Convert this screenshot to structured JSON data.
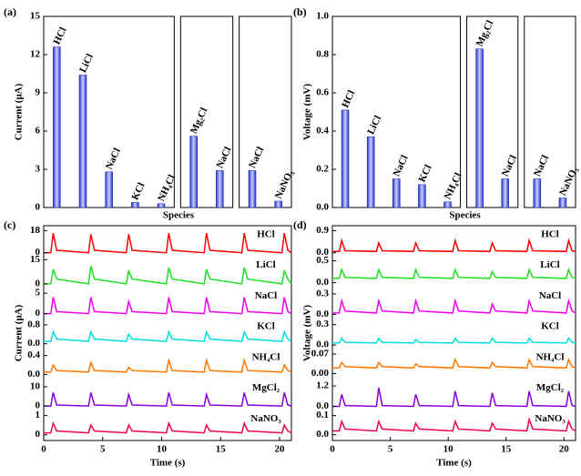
{
  "chart_data": [
    {
      "type": "bar",
      "panel_label": "(a)",
      "y_label": "Current (μA)",
      "x_label": "Species",
      "ylim": [
        0,
        15
      ],
      "yticks": [
        0,
        3,
        6,
        9,
        12,
        15
      ],
      "groups": [
        {
          "categories": [
            "HCl",
            "LiCl",
            "NaCl",
            "KCl",
            "NH₄Cl"
          ],
          "values": [
            12.6,
            10.4,
            2.8,
            0.4,
            0.3
          ],
          "label_colors": [
            "#ff0000",
            "#22dd22",
            "#cc00cc",
            "#00cccc",
            "#ff8800"
          ]
        },
        {
          "categories": [
            "Mg₂Cl",
            "NaCl"
          ],
          "values": [
            5.6,
            2.9
          ],
          "label_colors": [
            "#8800cc",
            "#cc00cc"
          ]
        },
        {
          "categories": [
            "NaCl",
            "NaNO₃"
          ],
          "values": [
            2.9,
            0.5
          ],
          "label_colors": [
            "#cc00cc",
            "#ff0033"
          ]
        }
      ]
    },
    {
      "type": "bar",
      "panel_label": "(b)",
      "y_label": "Voltage (mV)",
      "x_label": "Species",
      "ylim": [
        0,
        1.0
      ],
      "yticks": [
        {
          "value": 0,
          "label": "0.0"
        },
        0.2,
        0.4,
        0.6,
        0.8,
        {
          "value": 1,
          "label": "1.0"
        }
      ],
      "groups": [
        {
          "categories": [
            "HCl",
            "LiCl",
            "NaCl",
            "KCl",
            "NH₄Cl"
          ],
          "values": [
            0.51,
            0.37,
            0.15,
            0.12,
            0.03
          ],
          "label_colors": [
            "#ff0000",
            "#22dd22",
            "#cc00cc",
            "#00cccc",
            "#ff8800"
          ]
        },
        {
          "categories": [
            "Mg₂Cl",
            "NaCl"
          ],
          "values": [
            0.83,
            0.15
          ],
          "label_colors": [
            "#8800cc",
            "#cc00cc"
          ]
        },
        {
          "categories": [
            "NaCl",
            "NaNO₃"
          ],
          "values": [
            0.15,
            0.05
          ],
          "label_colors": [
            "#cc00cc",
            "#ff0033"
          ]
        }
      ]
    },
    {
      "type": "line",
      "panel_label": "(c)",
      "y_label": "Current (μA)",
      "x_label": "Time (s)",
      "xlim": [
        0,
        21
      ],
      "xticks": [
        0,
        5,
        10,
        15,
        20
      ],
      "x": [
        0,
        0.6,
        0.8,
        1.1,
        3.8,
        4.0,
        4.3,
        7.0,
        7.2,
        7.5,
        10.4,
        10.6,
        10.9,
        13.6,
        13.8,
        14.1,
        16.8,
        17.0,
        17.3,
        20.2,
        20.4,
        20.7,
        21
      ],
      "series": [
        {
          "name": "HCl",
          "color": "#ff0000",
          "ylim": [
            -3,
            22
          ],
          "yticks": [
            0,
            18
          ],
          "values": [
            0,
            0,
            16,
            2,
            0,
            15,
            2,
            0,
            15,
            2,
            0,
            16,
            2,
            0,
            16,
            2,
            0,
            16,
            2,
            0,
            16,
            2,
            0
          ]
        },
        {
          "name": "LiCl",
          "color": "#22dd22",
          "ylim": [
            -2,
            17
          ],
          "yticks": [
            0,
            15
          ],
          "values": [
            0,
            0,
            9,
            3,
            0,
            11,
            3,
            0,
            8,
            3,
            0,
            10,
            3,
            0,
            9,
            3,
            0,
            10,
            3,
            0,
            8,
            3,
            0
          ]
        },
        {
          "name": "NaCl",
          "color": "#ee00ee",
          "ylim": [
            -1,
            6.5
          ],
          "yticks": [
            0,
            5
          ],
          "values": [
            0,
            0,
            4,
            0.5,
            0,
            4,
            0.5,
            0,
            3,
            0.5,
            0,
            4,
            0.5,
            0,
            4,
            0.5,
            0,
            4,
            0.5,
            0,
            4,
            0.5,
            0
          ]
        },
        {
          "name": "KCl",
          "color": "#00dddd",
          "ylim": [
            -0.2,
            1.1
          ],
          "yticks": [
            {
              "value": 0,
              "label": "0.0"
            },
            0.8
          ],
          "values": [
            0.1,
            0.1,
            0.5,
            0.2,
            0.1,
            0.5,
            0.2,
            0.1,
            0.4,
            0.2,
            0.1,
            0.5,
            0.2,
            0.1,
            0.5,
            0.2,
            0.1,
            0.5,
            0.2,
            0.1,
            0.5,
            0.2,
            0.1
          ]
        },
        {
          "name": "NH₄Cl",
          "color": "#ff7700",
          "ylim": [
            -0.1,
            0.55
          ],
          "yticks": [
            {
              "value": 0,
              "label": "0.0"
            },
            0.4
          ],
          "values": [
            0.05,
            0.05,
            0.2,
            0.08,
            0.05,
            0.25,
            0.08,
            0.05,
            0.15,
            0.08,
            0.05,
            0.3,
            0.08,
            0.05,
            0.3,
            0.08,
            0.05,
            0.3,
            0.08,
            0.05,
            0.2,
            0.08,
            0.05
          ]
        },
        {
          "name": "MgCl₂",
          "color": "#8800dd",
          "ylim": [
            -2,
            14
          ],
          "yticks": [
            0,
            10
          ],
          "values": [
            0,
            0,
            7,
            0.5,
            0,
            7,
            0.5,
            0,
            6,
            0.5,
            0,
            7,
            0.5,
            0,
            6,
            0.5,
            0,
            7,
            0.5,
            0,
            7,
            0.5,
            0
          ]
        },
        {
          "name": "NaNO₃",
          "color": "#ee0055",
          "ylim": [
            -0.3,
            1.3
          ],
          "yticks": [
            0,
            1
          ],
          "values": [
            0.1,
            0.1,
            0.6,
            0.2,
            0.1,
            0.5,
            0.2,
            0.1,
            0.5,
            0.2,
            0.1,
            0.6,
            0.2,
            0.1,
            0.5,
            0.2,
            0.1,
            0.6,
            0.2,
            0.1,
            0.5,
            0.2,
            0.1
          ]
        }
      ]
    },
    {
      "type": "line",
      "panel_label": "(d)",
      "y_label": "Voltage (mV)",
      "x_label": "Time (s)",
      "xlim": [
        0,
        21
      ],
      "xticks": [
        0,
        5,
        10,
        15,
        20
      ],
      "x": [
        0,
        0.6,
        0.8,
        1.1,
        3.8,
        4.0,
        4.3,
        7.0,
        7.2,
        7.5,
        10.4,
        10.6,
        10.9,
        13.6,
        13.8,
        14.1,
        16.8,
        17.0,
        17.3,
        20.2,
        20.4,
        20.7,
        21
      ],
      "series": [
        {
          "name": "HCl",
          "color": "#ff0000",
          "ylim": [
            -0.15,
            1.1
          ],
          "yticks": [
            {
              "value": 0,
              "label": "0.0"
            },
            0.9
          ],
          "values": [
            0.05,
            0.05,
            0.5,
            0.08,
            0.05,
            0.4,
            0.08,
            0.05,
            0.4,
            0.08,
            0.05,
            0.5,
            0.08,
            0.05,
            0.4,
            0.08,
            0.05,
            0.5,
            0.08,
            0.05,
            0.5,
            0.08,
            0.05
          ]
        },
        {
          "name": "LiCl",
          "color": "#22dd22",
          "ylim": [
            -0.1,
            0.6
          ],
          "yticks": [
            {
              "value": 0,
              "label": "0.0"
            },
            0.5
          ],
          "values": [
            0.1,
            0.1,
            0.3,
            0.12,
            0.1,
            0.3,
            0.12,
            0.1,
            0.3,
            0.12,
            0.1,
            0.3,
            0.12,
            0.1,
            0.25,
            0.12,
            0.1,
            0.3,
            0.12,
            0.1,
            0.3,
            0.12,
            0.1
          ]
        },
        {
          "name": "NaCl",
          "color": "#ee00ee",
          "ylim": [
            -0.05,
            0.4
          ],
          "yticks": [
            {
              "value": 0,
              "label": "0.0"
            },
            0.3
          ],
          "values": [
            0.02,
            0.02,
            0.2,
            0.05,
            0.02,
            0.2,
            0.05,
            0.02,
            0.2,
            0.05,
            0.02,
            0.2,
            0.05,
            0.02,
            0.15,
            0.05,
            0.02,
            0.2,
            0.05,
            0.02,
            0.2,
            0.05,
            0.02
          ]
        },
        {
          "name": "KCl",
          "color": "#00dddd",
          "ylim": [
            -0.05,
            0.4
          ],
          "yticks": [
            {
              "value": 0,
              "label": "0.0"
            },
            0.3
          ],
          "values": [
            0.03,
            0.03,
            0.1,
            0.04,
            0.03,
            0.1,
            0.04,
            0.03,
            0.08,
            0.04,
            0.03,
            0.1,
            0.04,
            0.03,
            0.1,
            0.04,
            0.03,
            0.1,
            0.04,
            0.03,
            0.1,
            0.04,
            0.03
          ]
        },
        {
          "name": "NH₄Cl",
          "color": "#ff7700",
          "ylim": [
            -0.02,
            0.09
          ],
          "yticks": [
            {
              "value": 0,
              "label": "0.00"
            },
            0.07
          ],
          "values": [
            0.02,
            0.02,
            0.04,
            0.025,
            0.02,
            0.04,
            0.025,
            0.02,
            0.035,
            0.025,
            0.02,
            0.05,
            0.025,
            0.02,
            0.04,
            0.025,
            0.02,
            0.05,
            0.025,
            0.02,
            0.05,
            0.025,
            0.02
          ]
        },
        {
          "name": "MgCl₂",
          "color": "#8800dd",
          "ylim": [
            -0.2,
            1.6
          ],
          "yticks": [
            {
              "value": 0,
              "label": "0.0"
            },
            1.2
          ],
          "values": [
            0,
            0,
            0.7,
            0.05,
            0,
            1.1,
            0.05,
            0,
            0.7,
            0.05,
            0,
            0.9,
            0.05,
            0,
            0.8,
            0.05,
            0,
            0.9,
            0.05,
            0,
            0.9,
            0.05,
            0
          ]
        },
        {
          "name": "NaNO₃",
          "color": "#ee0055",
          "ylim": [
            -0.03,
            0.13
          ],
          "yticks": [
            {
              "value": 0,
              "label": "0.0"
            },
            0.1
          ],
          "values": [
            0.02,
            0.02,
            0.07,
            0.03,
            0.02,
            0.07,
            0.03,
            0.02,
            0.06,
            0.03,
            0.02,
            0.07,
            0.03,
            0.02,
            0.06,
            0.03,
            0.02,
            0.08,
            0.03,
            0.02,
            0.07,
            0.03,
            0.02
          ]
        }
      ]
    }
  ]
}
